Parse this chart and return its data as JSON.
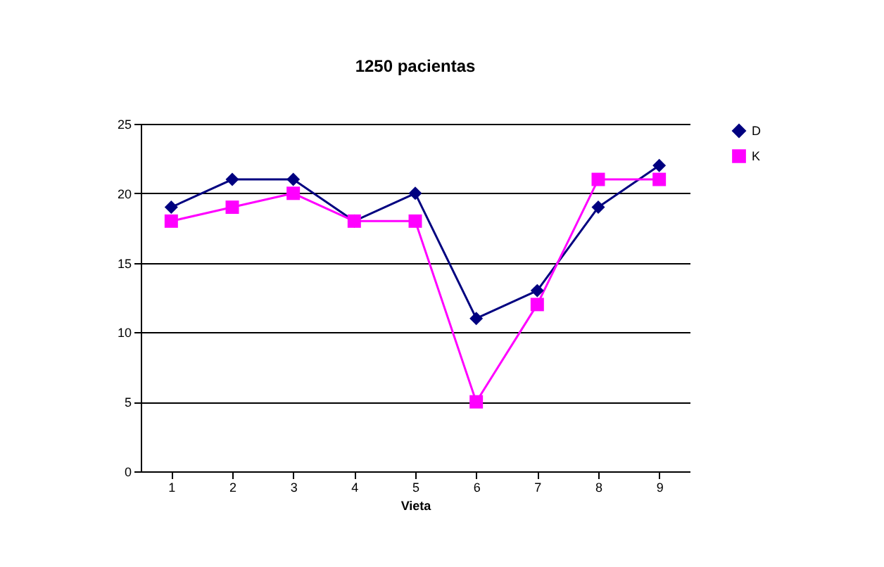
{
  "chart_data": {
    "type": "line",
    "title": "1250 pacientas",
    "xlabel": "Vieta",
    "categories": [
      "1",
      "2",
      "3",
      "4",
      "5",
      "6",
      "7",
      "8",
      "9"
    ],
    "series": [
      {
        "name": "D",
        "color": "#000080",
        "marker": "diamond",
        "values": [
          19,
          21,
          21,
          18,
          20,
          11,
          13,
          19,
          22
        ]
      },
      {
        "name": "K",
        "color": "#ff00ff",
        "marker": "square",
        "values": [
          18,
          19,
          20,
          18,
          18,
          5,
          12,
          21,
          21
        ]
      }
    ],
    "ylim": [
      0,
      25
    ],
    "yticks": [
      0,
      5,
      10,
      15,
      20,
      25
    ],
    "grid": "y",
    "legend": "right",
    "line_style": "solid"
  }
}
